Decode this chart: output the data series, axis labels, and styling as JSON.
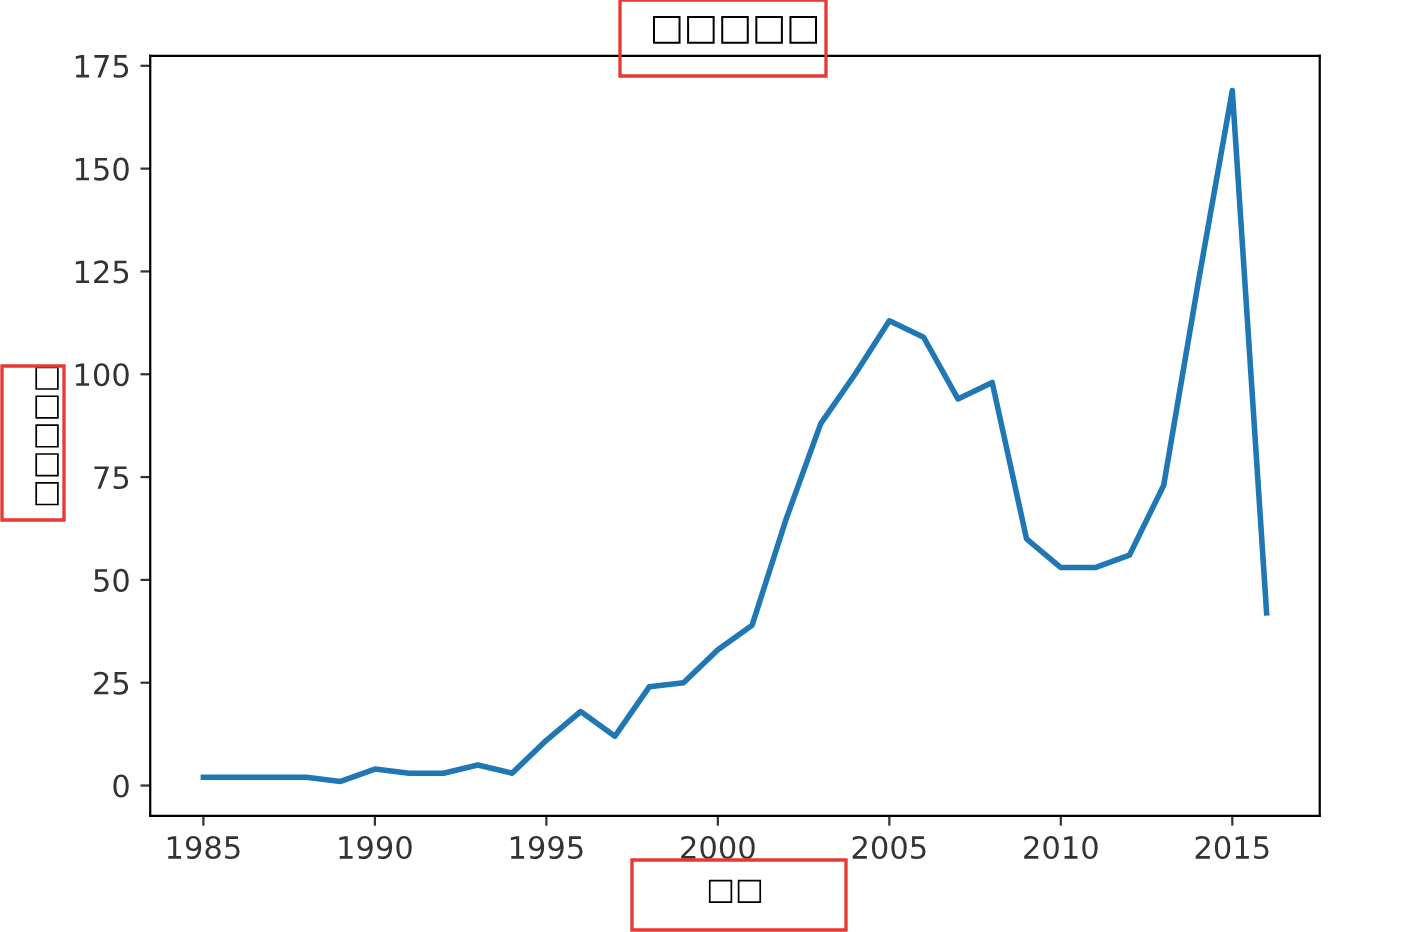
{
  "chart_data": {
    "type": "line",
    "title": "□□□□□",
    "xlabel": "□□",
    "ylabel": "□□□□□",
    "x": [
      1985,
      1986,
      1987,
      1988,
      1989,
      1990,
      1991,
      1992,
      1993,
      1994,
      1995,
      1996,
      1997,
      1998,
      1999,
      2000,
      2001,
      2002,
      2003,
      2004,
      2005,
      2006,
      2007,
      2008,
      2009,
      2010,
      2011,
      2012,
      2013,
      2014,
      2015,
      2016
    ],
    "series": [
      {
        "color": "#1f77b4",
        "values": [
          2,
          2,
          2,
          2,
          1,
          4,
          3,
          3,
          5,
          3,
          11,
          18,
          12,
          24,
          25,
          33,
          39,
          65,
          88,
          100,
          113,
          109,
          94,
          98,
          60,
          53,
          53,
          56,
          73,
          122,
          169,
          42
        ]
      }
    ],
    "xlim": [
      1983.45,
      2017.55
    ],
    "ylim": [
      -7.4,
      177.4
    ],
    "xticks": [
      1985,
      1990,
      1995,
      2000,
      2005,
      2010,
      2015
    ],
    "yticks": [
      0,
      25,
      50,
      75,
      100,
      125,
      150,
      175
    ],
    "grid": false,
    "legend": false,
    "marker": "none",
    "line_style": "solid"
  }
}
